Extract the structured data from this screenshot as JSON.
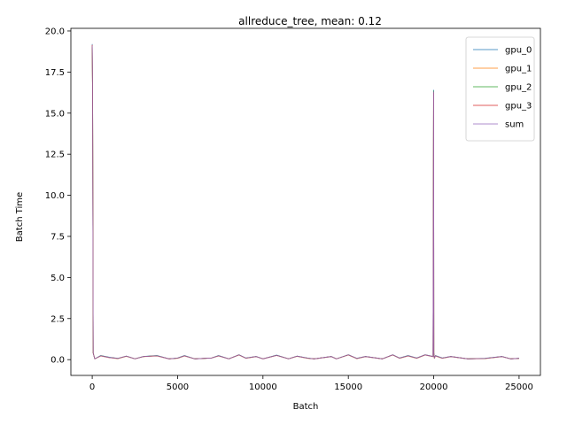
{
  "chart_data": {
    "type": "line",
    "title": "allreduce_tree, mean: 0.12",
    "xlabel": "Batch",
    "ylabel": "Batch Time",
    "xlim": [
      -1250,
      26250
    ],
    "ylim": [
      -0.96,
      20.16
    ],
    "xticks": [
      0,
      5000,
      10000,
      15000,
      20000,
      25000
    ],
    "xtick_labels": [
      "0",
      "5000",
      "10000",
      "15000",
      "20000",
      "25000"
    ],
    "yticks": [
      0.0,
      2.5,
      5.0,
      7.5,
      10.0,
      12.5,
      15.0,
      17.5,
      20.0
    ],
    "ytick_labels": [
      "0.0",
      "2.5",
      "5.0",
      "7.5",
      "10.0",
      "12.5",
      "15.0",
      "17.5",
      "20.0"
    ],
    "grid": false,
    "legend_position": "top-right",
    "series": [
      {
        "name": "gpu_0",
        "color": "#1f77b4",
        "x": [
          0,
          25,
          60,
          150,
          500,
          1000,
          1500,
          2000,
          2500,
          3000,
          3800,
          4500,
          5000,
          5400,
          6000,
          7000,
          7400,
          8000,
          8600,
          9000,
          9600,
          10000,
          10800,
          11500,
          12000,
          12600,
          13000,
          14000,
          14300,
          15000,
          15500,
          16000,
          17000,
          17600,
          18000,
          18500,
          19000,
          19500,
          19960,
          19995,
          20000,
          20010,
          20040,
          20100,
          20500,
          21000,
          22000,
          23000,
          24000,
          24500,
          25000
        ],
        "y": [
          19.2,
          15.2,
          0.4,
          0.05,
          0.25,
          0.15,
          0.08,
          0.22,
          0.05,
          0.2,
          0.25,
          0.05,
          0.1,
          0.25,
          0.05,
          0.1,
          0.25,
          0.05,
          0.3,
          0.1,
          0.2,
          0.05,
          0.28,
          0.05,
          0.22,
          0.1,
          0.05,
          0.2,
          0.05,
          0.3,
          0.08,
          0.2,
          0.05,
          0.3,
          0.1,
          0.25,
          0.1,
          0.3,
          0.2,
          16.0,
          16.4,
          0.4,
          0.1,
          0.25,
          0.1,
          0.2,
          0.05,
          0.08,
          0.2,
          0.05,
          0.08
        ]
      },
      {
        "name": "gpu_1",
        "color": "#ff7f0e",
        "x": [
          0,
          25,
          60,
          150,
          500,
          1000,
          1500,
          2000,
          2500,
          3000,
          3800,
          4500,
          5000,
          5400,
          6000,
          7000,
          7400,
          8000,
          8600,
          9000,
          9600,
          10000,
          10800,
          11500,
          12000,
          12600,
          13000,
          14000,
          14300,
          15000,
          15500,
          16000,
          17000,
          17600,
          18000,
          18500,
          19000,
          19500,
          19960,
          19995,
          20000,
          20010,
          20040,
          20100,
          20500,
          21000,
          22000,
          23000,
          24000,
          24500,
          25000
        ],
        "y": [
          19.1,
          15.0,
          0.4,
          0.05,
          0.22,
          0.12,
          0.06,
          0.2,
          0.05,
          0.18,
          0.22,
          0.05,
          0.08,
          0.22,
          0.05,
          0.1,
          0.22,
          0.05,
          0.28,
          0.08,
          0.18,
          0.05,
          0.25,
          0.05,
          0.2,
          0.08,
          0.05,
          0.18,
          0.05,
          0.28,
          0.06,
          0.18,
          0.05,
          0.28,
          0.08,
          0.22,
          0.08,
          0.28,
          0.18,
          15.9,
          16.2,
          0.38,
          0.08,
          0.22,
          0.08,
          0.18,
          0.05,
          0.06,
          0.18,
          0.05,
          0.07
        ]
      },
      {
        "name": "gpu_2",
        "color": "#2ca02c",
        "x": [
          0,
          25,
          60,
          150,
          500,
          1000,
          1500,
          2000,
          2500,
          3000,
          3800,
          4500,
          5000,
          5400,
          6000,
          7000,
          7400,
          8000,
          8600,
          9000,
          9600,
          10000,
          10800,
          11500,
          12000,
          12600,
          13000,
          14000,
          14300,
          15000,
          15500,
          16000,
          17000,
          17600,
          18000,
          18500,
          19000,
          19500,
          19960,
          19995,
          20000,
          20010,
          20040,
          20100,
          20500,
          21000,
          22000,
          23000,
          24000,
          24500,
          25000
        ],
        "y": [
          19.0,
          15.1,
          0.4,
          0.05,
          0.24,
          0.14,
          0.07,
          0.21,
          0.05,
          0.19,
          0.24,
          0.05,
          0.09,
          0.24,
          0.05,
          0.1,
          0.24,
          0.05,
          0.29,
          0.09,
          0.19,
          0.05,
          0.27,
          0.05,
          0.21,
          0.09,
          0.05,
          0.19,
          0.05,
          0.29,
          0.07,
          0.19,
          0.05,
          0.29,
          0.09,
          0.24,
          0.09,
          0.29,
          0.19,
          16.1,
          16.35,
          0.39,
          0.09,
          0.24,
          0.09,
          0.19,
          0.05,
          0.07,
          0.19,
          0.05,
          0.08
        ]
      },
      {
        "name": "gpu_3",
        "color": "#d62728",
        "x": [
          0,
          25,
          60,
          150,
          500,
          1000,
          1500,
          2000,
          2500,
          3000,
          3800,
          4500,
          5000,
          5400,
          6000,
          7000,
          7400,
          8000,
          8600,
          9000,
          9600,
          10000,
          10800,
          11500,
          12000,
          12600,
          13000,
          14000,
          14300,
          15000,
          15500,
          16000,
          17000,
          17600,
          18000,
          18500,
          19000,
          19500,
          19960,
          19995,
          20000,
          20010,
          20040,
          20100,
          20500,
          21000,
          22000,
          23000,
          24000,
          24500,
          25000
        ],
        "y": [
          19.15,
          15.1,
          0.4,
          0.05,
          0.23,
          0.13,
          0.07,
          0.21,
          0.05,
          0.19,
          0.23,
          0.05,
          0.09,
          0.23,
          0.05,
          0.1,
          0.23,
          0.05,
          0.29,
          0.09,
          0.19,
          0.05,
          0.26,
          0.05,
          0.21,
          0.09,
          0.05,
          0.19,
          0.05,
          0.29,
          0.07,
          0.19,
          0.05,
          0.29,
          0.09,
          0.23,
          0.09,
          0.29,
          0.19,
          15.95,
          16.25,
          0.38,
          0.09,
          0.23,
          0.09,
          0.19,
          0.05,
          0.07,
          0.19,
          0.05,
          0.08
        ]
      },
      {
        "name": "sum",
        "color": "#9467bd",
        "x": [
          0,
          25,
          60,
          150,
          500,
          1000,
          1500,
          2000,
          2500,
          3000,
          3800,
          4500,
          5000,
          5400,
          6000,
          7000,
          7400,
          8000,
          8600,
          9000,
          9600,
          10000,
          10800,
          11500,
          12000,
          12600,
          13000,
          14000,
          14300,
          15000,
          15500,
          16000,
          17000,
          17600,
          18000,
          18500,
          19000,
          19500,
          19960,
          19995,
          20000,
          20010,
          20040,
          20100,
          20500,
          21000,
          22000,
          23000,
          24000,
          24500,
          25000
        ],
        "y": [
          19.1,
          15.1,
          0.4,
          0.05,
          0.23,
          0.13,
          0.07,
          0.21,
          0.05,
          0.19,
          0.23,
          0.05,
          0.09,
          0.23,
          0.05,
          0.1,
          0.23,
          0.05,
          0.29,
          0.09,
          0.19,
          0.05,
          0.26,
          0.05,
          0.21,
          0.09,
          0.05,
          0.19,
          0.05,
          0.29,
          0.07,
          0.19,
          0.05,
          0.29,
          0.09,
          0.23,
          0.09,
          0.29,
          0.19,
          16.0,
          16.3,
          0.39,
          0.09,
          0.23,
          0.09,
          0.19,
          0.05,
          0.07,
          0.19,
          0.05,
          0.08
        ]
      }
    ]
  }
}
